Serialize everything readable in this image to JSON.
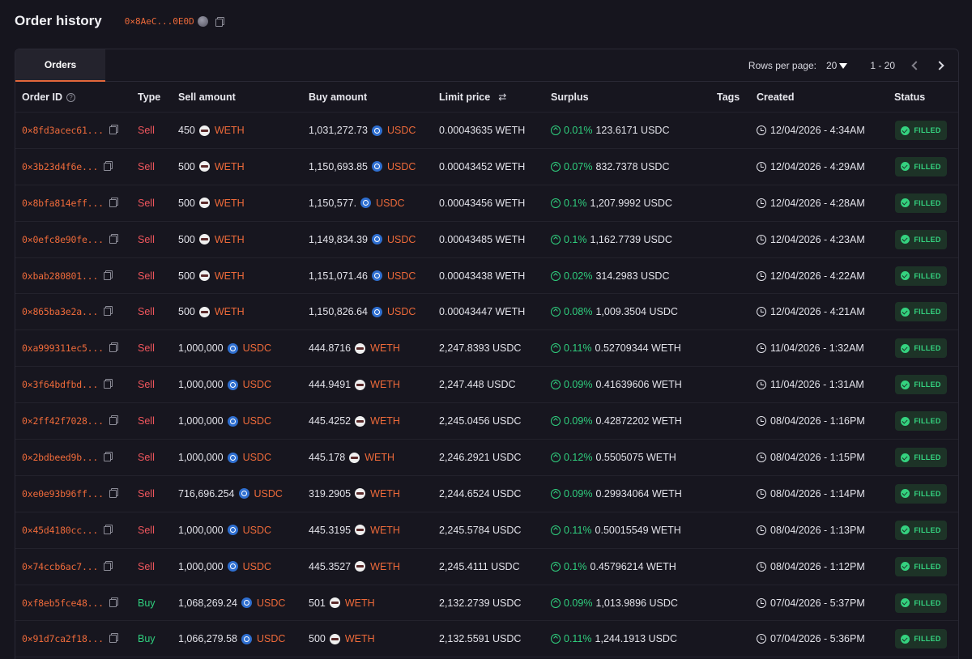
{
  "header": {
    "title": "Order history",
    "address": "0×8AeC...0E0D"
  },
  "tabs": [
    {
      "label": "Orders",
      "active": true
    }
  ],
  "pagination": {
    "rows_per_page_label": "Rows per page:",
    "rows_per_page_value": "20",
    "range": "1 - 20"
  },
  "table": {
    "headers": {
      "order_id": "Order ID",
      "type": "Type",
      "sell_amount": "Sell amount",
      "buy_amount": "Buy amount",
      "limit_price": "Limit price",
      "surplus": "Surplus",
      "tags": "Tags",
      "created": "Created",
      "status": "Status"
    },
    "rows": [
      {
        "id": "0×8fd3acec61...",
        "type": "Sell",
        "sell_amt": "450",
        "sell_tok": "WETH",
        "buy_amt": "1,031,272.73",
        "buy_tok": "USDC",
        "limit": "0.00043635 WETH",
        "pct": "0.01%",
        "surplus": "123.6171 USDC",
        "created": "12/04/2026 - 4:34AM",
        "status": "FILLED"
      },
      {
        "id": "0×3b23d4f6e...",
        "type": "Sell",
        "sell_amt": "500",
        "sell_tok": "WETH",
        "buy_amt": "1,150,693.85",
        "buy_tok": "USDC",
        "limit": "0.00043452 WETH",
        "pct": "0.07%",
        "surplus": "832.7378 USDC",
        "created": "12/04/2026 - 4:29AM",
        "status": "FILLED"
      },
      {
        "id": "0×8bfa814eff...",
        "type": "Sell",
        "sell_amt": "500",
        "sell_tok": "WETH",
        "buy_amt": "1,150,577.",
        "buy_tok": "USDC",
        "limit": "0.00043456 WETH",
        "pct": "0.1%",
        "surplus": "1,207.9992 USDC",
        "created": "12/04/2026 - 4:28AM",
        "status": "FILLED"
      },
      {
        "id": "0×0efc8e90fe...",
        "type": "Sell",
        "sell_amt": "500",
        "sell_tok": "WETH",
        "buy_amt": "1,149,834.39",
        "buy_tok": "USDC",
        "limit": "0.00043485 WETH",
        "pct": "0.1%",
        "surplus": "1,162.7739 USDC",
        "created": "12/04/2026 - 4:23AM",
        "status": "FILLED"
      },
      {
        "id": "0xbab280801...",
        "type": "Sell",
        "sell_amt": "500",
        "sell_tok": "WETH",
        "buy_amt": "1,151,071.46",
        "buy_tok": "USDC",
        "limit": "0.00043438 WETH",
        "pct": "0.02%",
        "surplus": "314.2983 USDC",
        "created": "12/04/2026 - 4:22AM",
        "status": "FILLED"
      },
      {
        "id": "0×865ba3e2a...",
        "type": "Sell",
        "sell_amt": "500",
        "sell_tok": "WETH",
        "buy_amt": "1,150,826.64",
        "buy_tok": "USDC",
        "limit": "0.00043447 WETH",
        "pct": "0.08%",
        "surplus": "1,009.3504 USDC",
        "created": "12/04/2026 - 4:21AM",
        "status": "FILLED"
      },
      {
        "id": "0xa999311ec5...",
        "type": "Sell",
        "sell_amt": "1,000,000",
        "sell_tok": "USDC",
        "buy_amt": "444.8716",
        "buy_tok": "WETH",
        "limit": "2,247.8393 USDC",
        "pct": "0.11%",
        "surplus": "0.52709344 WETH",
        "created": "11/04/2026 - 1:32AM",
        "status": "FILLED"
      },
      {
        "id": "0×3f64bdfbd...",
        "type": "Sell",
        "sell_amt": "1,000,000",
        "sell_tok": "USDC",
        "buy_amt": "444.9491",
        "buy_tok": "WETH",
        "limit": "2,247.448 USDC",
        "pct": "0.09%",
        "surplus": "0.41639606 WETH",
        "created": "11/04/2026 - 1:31AM",
        "status": "FILLED"
      },
      {
        "id": "0×2ff42f7028...",
        "type": "Sell",
        "sell_amt": "1,000,000",
        "sell_tok": "USDC",
        "buy_amt": "445.4252",
        "buy_tok": "WETH",
        "limit": "2,245.0456 USDC",
        "pct": "0.09%",
        "surplus": "0.42872202 WETH",
        "created": "08/04/2026 - 1:16PM",
        "status": "FILLED"
      },
      {
        "id": "0×2bdbeed9b...",
        "type": "Sell",
        "sell_amt": "1,000,000",
        "sell_tok": "USDC",
        "buy_amt": "445.178",
        "buy_tok": "WETH",
        "limit": "2,246.2921 USDC",
        "pct": "0.12%",
        "surplus": "0.5505075 WETH",
        "created": "08/04/2026 - 1:15PM",
        "status": "FILLED"
      },
      {
        "id": "0xe0e93b96ff...",
        "type": "Sell",
        "sell_amt": "716,696.254",
        "sell_tok": "USDC",
        "buy_amt": "319.2905",
        "buy_tok": "WETH",
        "limit": "2,244.6524 USDC",
        "pct": "0.09%",
        "surplus": "0.29934064 WETH",
        "created": "08/04/2026 - 1:14PM",
        "status": "FILLED"
      },
      {
        "id": "0×45d4180cc...",
        "type": "Sell",
        "sell_amt": "1,000,000",
        "sell_tok": "USDC",
        "buy_amt": "445.3195",
        "buy_tok": "WETH",
        "limit": "2,245.5784 USDC",
        "pct": "0.11%",
        "surplus": "0.50015549 WETH",
        "created": "08/04/2026 - 1:13PM",
        "status": "FILLED"
      },
      {
        "id": "0×74ccb6ac7...",
        "type": "Sell",
        "sell_amt": "1,000,000",
        "sell_tok": "USDC",
        "buy_amt": "445.3527",
        "buy_tok": "WETH",
        "limit": "2,245.4111 USDC",
        "pct": "0.1%",
        "surplus": "0.45796214 WETH",
        "created": "08/04/2026 - 1:12PM",
        "status": "FILLED"
      },
      {
        "id": "0xf8eb5fce48...",
        "type": "Buy",
        "sell_amt": "1,068,269.24",
        "sell_tok": "USDC",
        "buy_amt": "501",
        "buy_tok": "WETH",
        "limit": "2,132.2739 USDC",
        "pct": "0.09%",
        "surplus": "1,013.9896 USDC",
        "created": "07/04/2026 - 5:37PM",
        "status": "FILLED"
      },
      {
        "id": "0×91d7ca2f18...",
        "type": "Buy",
        "sell_amt": "1,066,279.58",
        "sell_tok": "USDC",
        "buy_amt": "500",
        "buy_tok": "WETH",
        "limit": "2,132.5591 USDC",
        "pct": "0.11%",
        "surplus": "1,244.1913 USDC",
        "created": "07/04/2026 - 5:36PM",
        "status": "FILLED"
      }
    ]
  }
}
